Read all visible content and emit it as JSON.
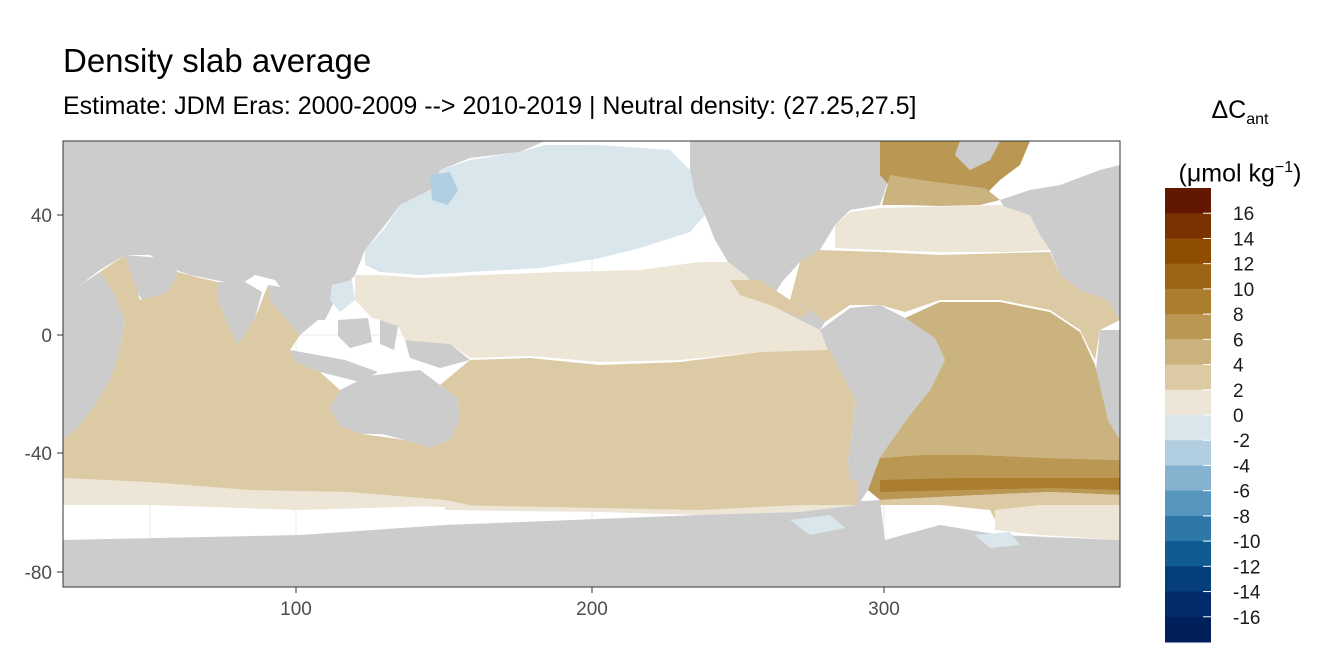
{
  "title": "Density slab average",
  "subtitle": "Estimate: JDM Eras: 2000-2009 --> 2010-2019 | Neutral density: (27.25,27.5]",
  "legend": {
    "title_line1_main": "ΔC",
    "title_line1_sub": "ant",
    "title_line2_open": "(μmol kg",
    "title_line2_sup": "−1",
    "title_line2_close": ")",
    "labels": [
      "16",
      "14",
      "12",
      "10",
      "8",
      "6",
      "4",
      "2",
      "0",
      "-2",
      "-4",
      "-6",
      "-8",
      "-10",
      "-12",
      "-14",
      "-16"
    ],
    "colors": [
      "#611700",
      "#7a3300",
      "#8f4d04",
      "#9c6414",
      "#ab7d2e",
      "#ba9752",
      "#cbb37f",
      "#dccaa4",
      "#ede6d7",
      "#d9e6ec",
      "#b1cfe0",
      "#85b3cf",
      "#5896bd",
      "#2e78a8",
      "#0e5a93",
      "#053d7d",
      "#022c6b",
      "#011f5b"
    ]
  },
  "map": {
    "x_ticks": [
      "100",
      "200",
      "300"
    ],
    "y_ticks": [
      "40",
      "0",
      "-40",
      "-80"
    ],
    "land_color": "#cccccc",
    "water_background": "#ffffff"
  }
}
